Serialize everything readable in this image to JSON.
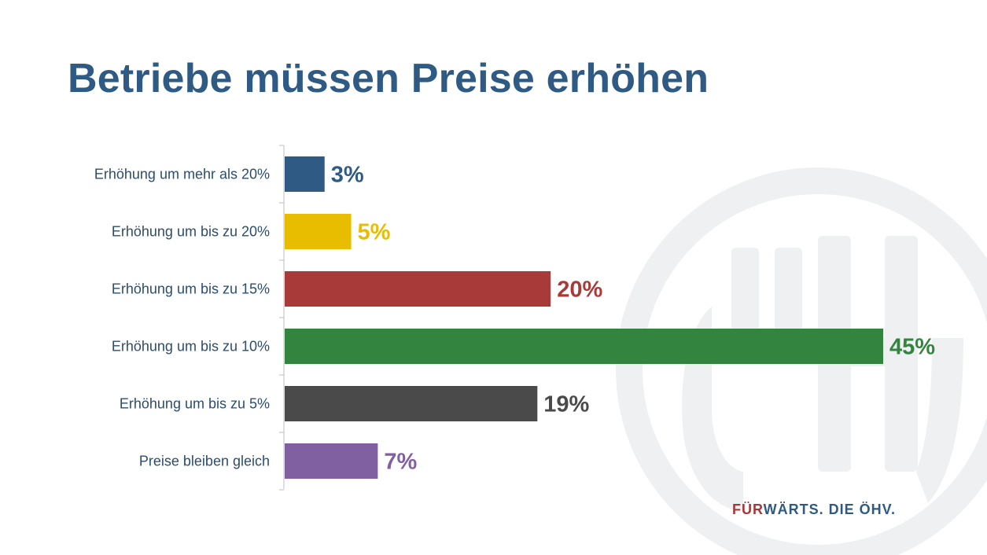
{
  "title": "Betriebe müssen Preise erhöhen",
  "slogan": {
    "part_red": "FÜR",
    "part_blue": "WÄRTS. DIE ÖHV."
  },
  "chart_data": {
    "type": "bar",
    "orientation": "horizontal",
    "title": "Betriebe müssen Preise erhöhen",
    "xlabel": "",
    "ylabel": "",
    "xlim": [
      0,
      45
    ],
    "grid": false,
    "legend": "none",
    "categories": [
      "Erhöhung um mehr als 20%",
      "Erhöhung um bis zu 20%",
      "Erhöhung um bis zu 15%",
      "Erhöhung um bis zu 10%",
      "Erhöhung um bis zu 5%",
      "Preise bleiben gleich"
    ],
    "values": [
      3,
      5,
      20,
      45,
      19,
      7
    ],
    "value_labels": [
      "3%",
      "5%",
      "20%",
      "45%",
      "19%",
      "7%"
    ],
    "colors": [
      "#2f5a84",
      "#e8bd00",
      "#a83a3a",
      "#33843f",
      "#4a4a4a",
      "#8060a0"
    ]
  },
  "watermark_icon": "oehv-logo-icon"
}
